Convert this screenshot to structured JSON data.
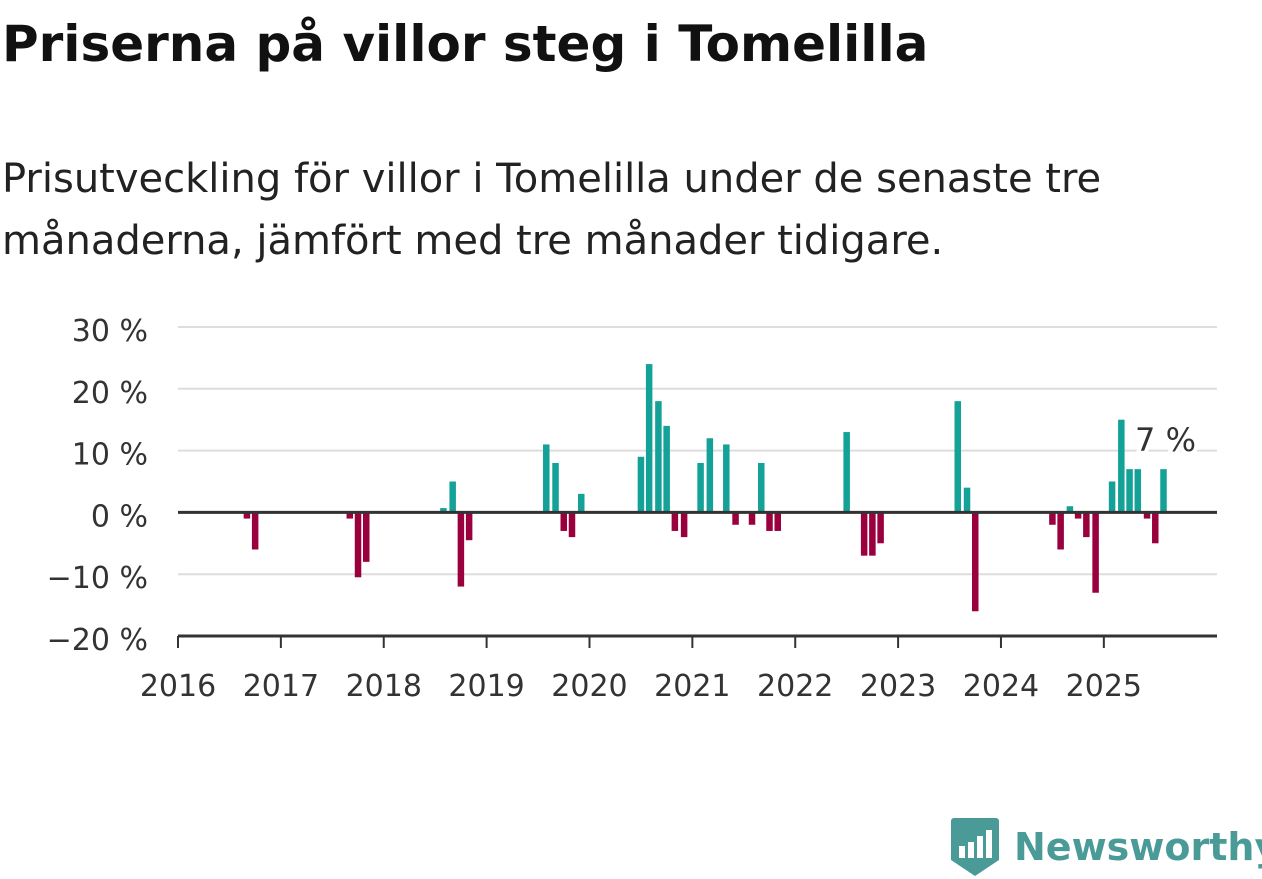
{
  "header": {
    "title": "Priserna på villor steg i Tomelilla",
    "subtitle": "Prisutveckling för villor i Tomelilla under de senaste tre månaderna, jämfört med tre månader tidigare."
  },
  "brand": {
    "name": "Newsworthy",
    "color": "#4a9b98",
    "icon": "newsworthy-logo-icon"
  },
  "colors": {
    "positive": "#13a198",
    "negative": "#99003d",
    "axis": "#333333",
    "grid": "#dddddd"
  },
  "chart_data": {
    "type": "bar",
    "x_unit": "decimal-year",
    "y_unit": "percent",
    "ylim": [
      -20,
      30
    ],
    "xlim": [
      2016.0,
      2026.1
    ],
    "yticks": [
      -20,
      -10,
      0,
      10,
      20,
      30
    ],
    "ytick_labels": [
      "−20 %",
      "−10 %",
      "0 %",
      "10 %",
      "20 %",
      "30 %"
    ],
    "xticks": [
      2016,
      2017,
      2018,
      2019,
      2020,
      2021,
      2022,
      2023,
      2024,
      2025
    ],
    "xtick_labels": [
      "2016",
      "2017",
      "2018",
      "2019",
      "2020",
      "2021",
      "2022",
      "2023",
      "2024",
      "2025"
    ],
    "grid": true,
    "annotation": {
      "text": "7 %",
      "x": 2025.58,
      "y": 7
    },
    "points": [
      {
        "x": 2016.67,
        "y": -1
      },
      {
        "x": 2016.75,
        "y": -6
      },
      {
        "x": 2017.67,
        "y": -1
      },
      {
        "x": 2017.75,
        "y": -10.5
      },
      {
        "x": 2017.83,
        "y": -8
      },
      {
        "x": 2018.58,
        "y": 0.7
      },
      {
        "x": 2018.67,
        "y": 5
      },
      {
        "x": 2018.75,
        "y": -12
      },
      {
        "x": 2018.83,
        "y": -4.5
      },
      {
        "x": 2019.58,
        "y": 11
      },
      {
        "x": 2019.67,
        "y": 8
      },
      {
        "x": 2019.75,
        "y": -3
      },
      {
        "x": 2019.83,
        "y": -4
      },
      {
        "x": 2019.92,
        "y": 3
      },
      {
        "x": 2020.5,
        "y": 9
      },
      {
        "x": 2020.58,
        "y": 24
      },
      {
        "x": 2020.67,
        "y": 18
      },
      {
        "x": 2020.75,
        "y": 14
      },
      {
        "x": 2020.83,
        "y": -3
      },
      {
        "x": 2020.92,
        "y": -4
      },
      {
        "x": 2021.08,
        "y": 8
      },
      {
        "x": 2021.17,
        "y": 12
      },
      {
        "x": 2021.33,
        "y": 11
      },
      {
        "x": 2021.42,
        "y": -2
      },
      {
        "x": 2021.58,
        "y": -2
      },
      {
        "x": 2021.67,
        "y": 8
      },
      {
        "x": 2021.75,
        "y": -3
      },
      {
        "x": 2021.83,
        "y": -3
      },
      {
        "x": 2022.5,
        "y": 13
      },
      {
        "x": 2022.67,
        "y": -7
      },
      {
        "x": 2022.75,
        "y": -7
      },
      {
        "x": 2022.83,
        "y": -5
      },
      {
        "x": 2023.58,
        "y": 18
      },
      {
        "x": 2023.67,
        "y": 4
      },
      {
        "x": 2023.75,
        "y": -16
      },
      {
        "x": 2024.5,
        "y": -2
      },
      {
        "x": 2024.58,
        "y": -6
      },
      {
        "x": 2024.67,
        "y": 1
      },
      {
        "x": 2024.75,
        "y": -1
      },
      {
        "x": 2024.83,
        "y": -4
      },
      {
        "x": 2024.92,
        "y": -13
      },
      {
        "x": 2025.08,
        "y": 5
      },
      {
        "x": 2025.17,
        "y": 15
      },
      {
        "x": 2025.25,
        "y": 7
      },
      {
        "x": 2025.33,
        "y": 7
      },
      {
        "x": 2025.42,
        "y": -1
      },
      {
        "x": 2025.5,
        "y": -5
      },
      {
        "x": 2025.58,
        "y": 7
      }
    ]
  }
}
